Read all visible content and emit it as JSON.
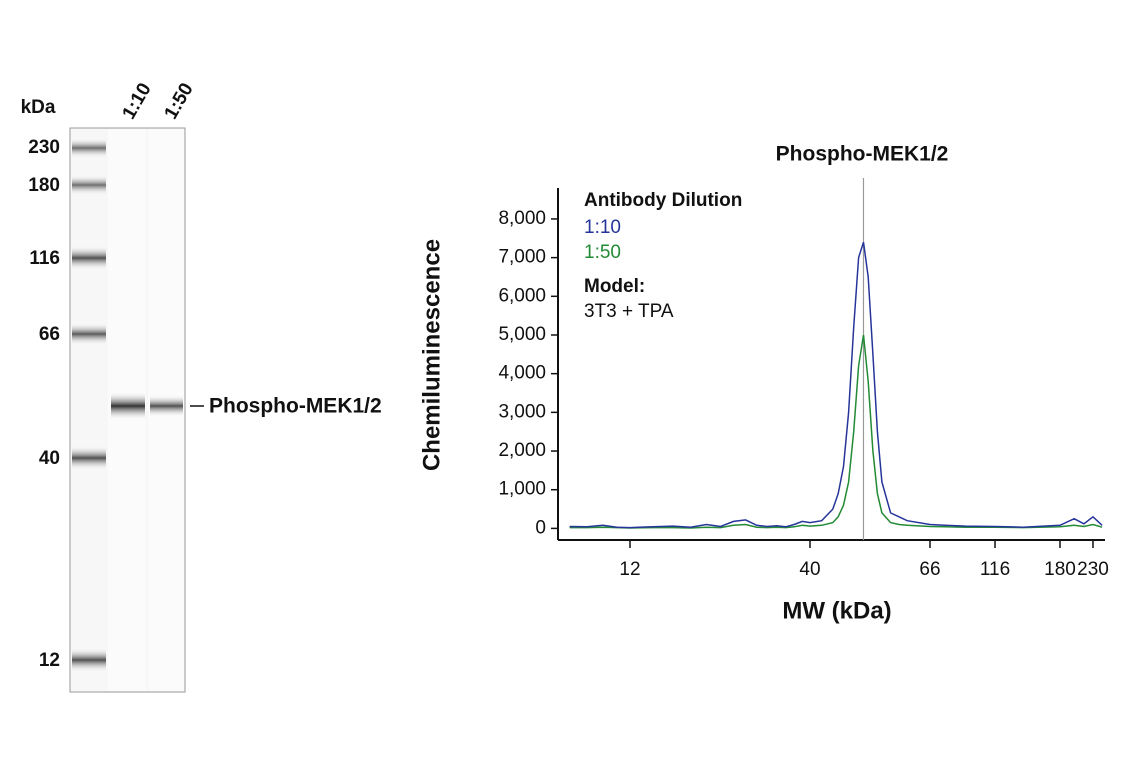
{
  "blot": {
    "unit": "kDa",
    "lanes": [
      "1:10",
      "1:50"
    ],
    "markers": [
      "230",
      "180",
      "116",
      "66",
      "40",
      "12"
    ],
    "band_label": "Phospho-MEK1/2"
  },
  "chart_data": {
    "type": "line",
    "title": "Phospho-MEK1/2",
    "marker_x": 50,
    "x_label": "MW (kDa)",
    "y_label": "Chemiluminescence",
    "legend_title": "Antibody Dilution",
    "annotations": [
      "Model:",
      "3T3 + TPA"
    ],
    "x": [
      8,
      9,
      10,
      11,
      12,
      14,
      16,
      18,
      20,
      22,
      24,
      26,
      28,
      30,
      32,
      34,
      36,
      38,
      40,
      42,
      44,
      45,
      46,
      47,
      48,
      49,
      50,
      51,
      52,
      53,
      54,
      56,
      58,
      60,
      66,
      75,
      90,
      116,
      140,
      180,
      200,
      215,
      230,
      245
    ],
    "series": [
      {
        "name": "1:10",
        "color": "#26359a",
        "values": [
          50,
          40,
          80,
          30,
          20,
          40,
          60,
          30,
          100,
          50,
          180,
          220,
          80,
          50,
          70,
          40,
          100,
          180,
          150,
          200,
          500,
          900,
          1600,
          3000,
          5200,
          7000,
          7400,
          6500,
          4500,
          2500,
          1200,
          400,
          300,
          200,
          100,
          80,
          60,
          50,
          30,
          80,
          250,
          120,
          300,
          80
        ]
      },
      {
        "name": "1:50",
        "color": "#238a35",
        "values": [
          20,
          20,
          30,
          20,
          10,
          20,
          20,
          10,
          30,
          20,
          80,
          100,
          30,
          20,
          30,
          20,
          40,
          80,
          60,
          80,
          150,
          300,
          600,
          1200,
          2500,
          4200,
          5000,
          3800,
          2000,
          900,
          400,
          150,
          100,
          80,
          50,
          40,
          30,
          30,
          20,
          40,
          80,
          50,
          100,
          30
        ]
      }
    ],
    "xlim": [
      7.4,
      250
    ],
    "xticks": [
      12,
      40,
      66,
      116,
      180,
      230
    ],
    "ylim": [
      -300,
      8800
    ],
    "yticks": [
      0,
      {
        "value": 1000,
        "label": "1,000"
      },
      {
        "value": 2000,
        "label": "2,000"
      },
      {
        "value": 3000,
        "label": "3,000"
      },
      {
        "value": 4000,
        "label": "4,000"
      },
      {
        "value": 5000,
        "label": "5,000"
      },
      {
        "value": 6000,
        "label": "6,000"
      },
      {
        "value": 7000,
        "label": "7,000"
      },
      {
        "value": 8000,
        "label": "8,000"
      }
    ]
  }
}
